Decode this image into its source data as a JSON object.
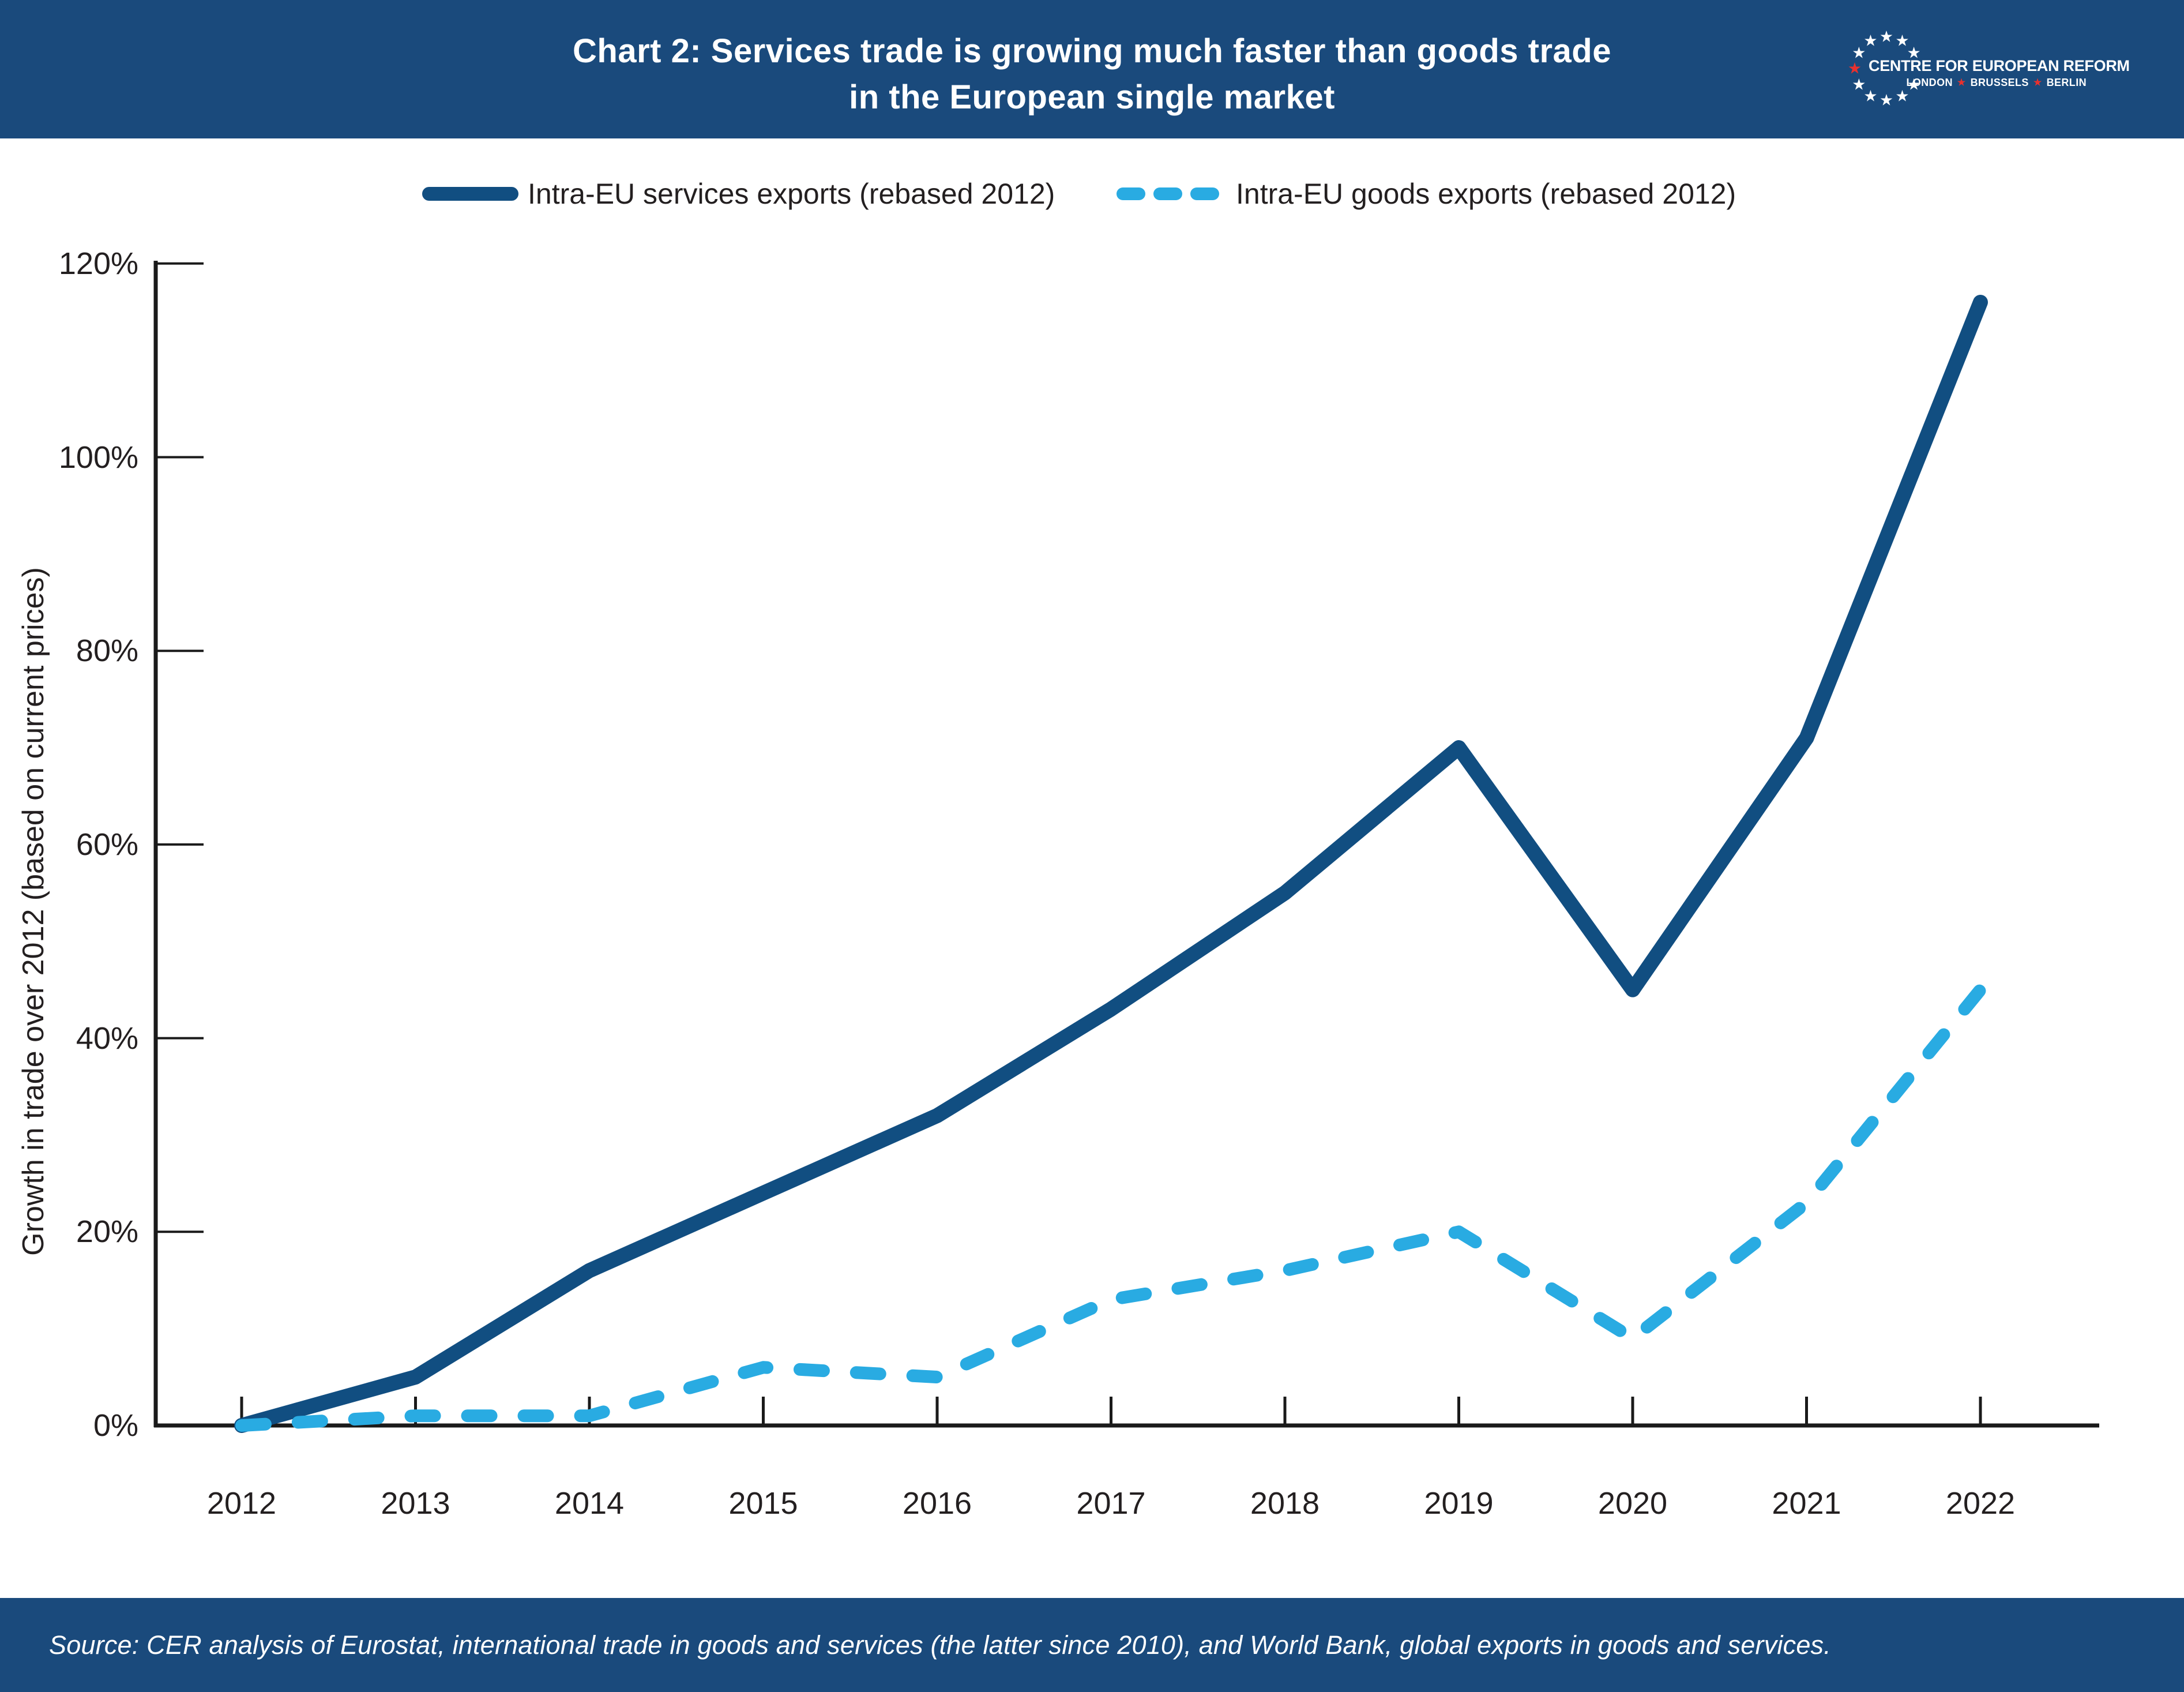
{
  "header": {
    "title_line1": "Chart 2: Services trade is growing much faster than goods trade",
    "title_line2": "in the European single market",
    "logo": {
      "name": "CENTRE FOR EUROPEAN REFORM",
      "cities": [
        "LONDON",
        "BRUSSELS",
        "BERLIN"
      ],
      "star": "★"
    }
  },
  "legend": {
    "items": [
      {
        "label": "Intra-EU services exports (rebased 2012)",
        "style": "solid",
        "color": "#114e81"
      },
      {
        "label": "Intra-EU goods exports (rebased 2012)",
        "style": "dashed",
        "color": "#29abe2"
      }
    ]
  },
  "chart_data": {
    "type": "line",
    "x": [
      2012,
      2013,
      2014,
      2015,
      2016,
      2017,
      2018,
      2019,
      2020,
      2021,
      2022
    ],
    "series": [
      {
        "name": "Intra-EU services exports (rebased 2012)",
        "style": "solid",
        "color": "#114e81",
        "values": [
          0,
          5,
          16,
          24,
          32,
          43,
          55,
          70,
          45,
          71,
          116
        ]
      },
      {
        "name": "Intra-EU goods exports (rebased 2012)",
        "style": "dashed",
        "color": "#29abe2",
        "values": [
          0,
          1,
          1,
          6,
          5,
          13,
          16,
          20,
          9,
          23,
          45
        ]
      }
    ],
    "ylabel": "Growth in trade over 2012 (based on current prices)",
    "xlabel": "",
    "unit": "%",
    "ylim": [
      0,
      120
    ],
    "y_ticks": [
      {
        "value": 0,
        "label": "0%"
      },
      {
        "value": 20,
        "label": "20%"
      },
      {
        "value": 40,
        "label": "40%"
      },
      {
        "value": 60,
        "label": "60%"
      },
      {
        "value": 80,
        "label": "80%"
      },
      {
        "value": 100,
        "label": "100%"
      },
      {
        "value": 120,
        "label": "120%"
      }
    ],
    "grid": false,
    "legend_position": "top"
  },
  "footer": {
    "source": "Source: CER analysis of Eurostat, international trade in goods and services (the latter since 2010), and World Bank, global exports in goods and services."
  },
  "colors": {
    "navy_band": "#1a4a7c",
    "services_line": "#114e81",
    "goods_line": "#29abe2",
    "axis": "#1a1a1a",
    "text": "#231f20",
    "logo_red": "#e8312e",
    "background": "#ffffff"
  }
}
